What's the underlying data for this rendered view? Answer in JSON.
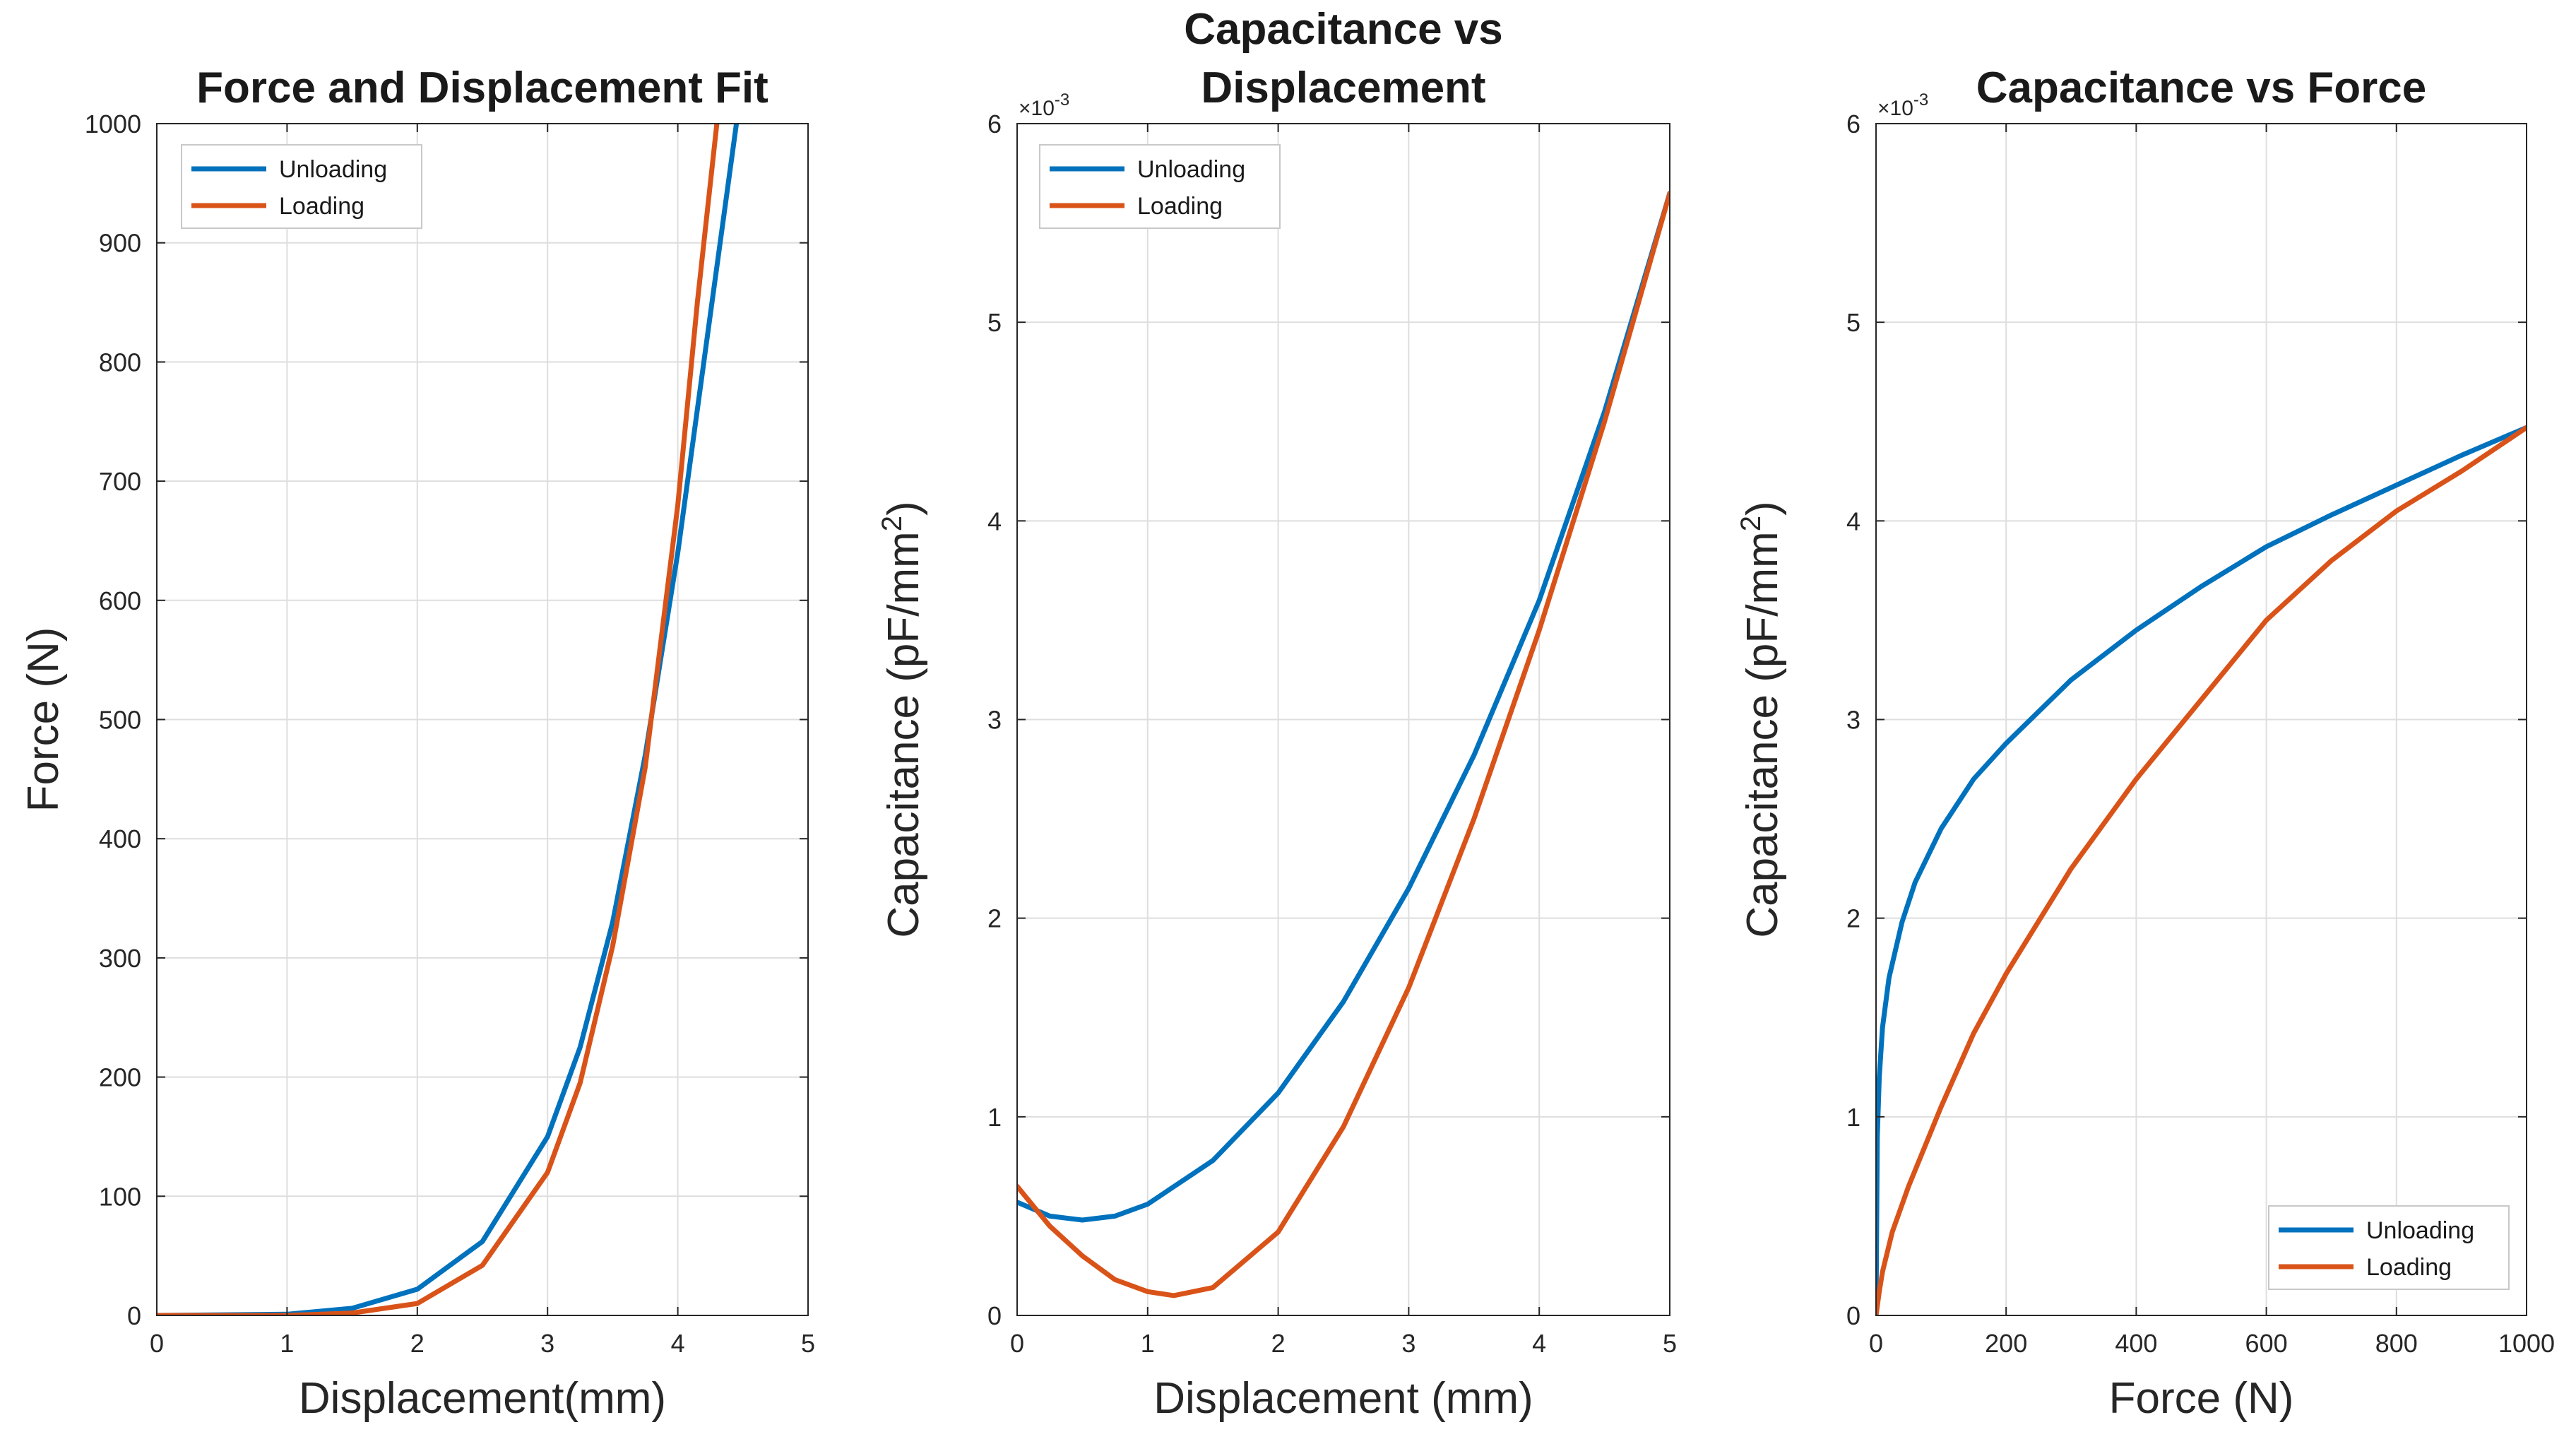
{
  "colors": {
    "unloading": "#0072BD",
    "loading": "#D95319"
  },
  "chart_data": [
    {
      "type": "line",
      "title": [
        "Force and Displacement Fit"
      ],
      "xlabel": "Displacement(mm)",
      "ylabel": "Force (N)",
      "xlim": [
        0,
        5
      ],
      "ylim": [
        0,
        1000
      ],
      "xticks": [
        0,
        1,
        2,
        3,
        4,
        5
      ],
      "yticks": [
        0,
        100,
        200,
        300,
        400,
        500,
        600,
        700,
        800,
        900,
        1000
      ],
      "xticklabels": [
        "0",
        "1",
        "2",
        "3",
        "4",
        "5"
      ],
      "yticklabels": [
        "0",
        "100",
        "200",
        "300",
        "400",
        "500",
        "600",
        "700",
        "800",
        "900",
        "1000"
      ],
      "legend": {
        "position": "top-left",
        "entries": [
          "Unloading",
          "Loading"
        ]
      },
      "series": [
        {
          "name": "Unloading",
          "x": [
            0,
            1,
            1.5,
            2,
            2.5,
            3,
            3.25,
            3.5,
            3.75,
            4,
            4.25,
            4.45
          ],
          "y": [
            0,
            1,
            6,
            22,
            62,
            150,
            225,
            330,
            470,
            640,
            840,
            1000
          ]
        },
        {
          "name": "Loading",
          "x": [
            0,
            1,
            1.5,
            2,
            2.5,
            3,
            3.25,
            3.5,
            3.75,
            4,
            4.15,
            4.3
          ],
          "y": [
            0,
            0,
            2,
            10,
            42,
            120,
            195,
            310,
            460,
            680,
            850,
            1000
          ]
        }
      ]
    },
    {
      "type": "line",
      "title": [
        "Capacitance vs",
        "Displacement"
      ],
      "xlabel": "Displacement (mm)",
      "ylabel": "Capacitance (pF/mm",
      "ylabel_sup": "2",
      "ylabel_end": ")",
      "exponent": {
        "base": "×10",
        "power": "-3"
      },
      "xlim": [
        0,
        5
      ],
      "ylim": [
        0,
        6
      ],
      "xticks": [
        0,
        1,
        2,
        3,
        4,
        5
      ],
      "yticks": [
        0,
        1,
        2,
        3,
        4,
        5,
        6
      ],
      "xticklabels": [
        "0",
        "1",
        "2",
        "3",
        "4",
        "5"
      ],
      "yticklabels": [
        "0",
        "1",
        "2",
        "3",
        "4",
        "5",
        "6"
      ],
      "legend": {
        "position": "top-left",
        "entries": [
          "Unloading",
          "Loading"
        ]
      },
      "series": [
        {
          "name": "Unloading",
          "x": [
            0,
            0.25,
            0.5,
            0.75,
            1,
            1.5,
            2,
            2.5,
            3,
            3.5,
            4,
            4.5,
            5
          ],
          "y": [
            0.57,
            0.5,
            0.48,
            0.5,
            0.56,
            0.78,
            1.12,
            1.58,
            2.15,
            2.82,
            3.6,
            4.55,
            5.65
          ]
        },
        {
          "name": "Loading",
          "x": [
            0,
            0.25,
            0.5,
            0.75,
            1,
            1.2,
            1.5,
            2,
            2.5,
            3,
            3.5,
            4,
            4.5,
            5
          ],
          "y": [
            0.65,
            0.45,
            0.3,
            0.18,
            0.12,
            0.1,
            0.14,
            0.42,
            0.95,
            1.65,
            2.5,
            3.45,
            4.5,
            5.65
          ]
        }
      ]
    },
    {
      "type": "line",
      "title": [
        "Capacitance vs Force"
      ],
      "xlabel": "Force (N)",
      "ylabel": "Capacitance (pF/mm",
      "ylabel_sup": "2",
      "ylabel_end": ")",
      "exponent": {
        "base": "×10",
        "power": "-3"
      },
      "xlim": [
        0,
        1000
      ],
      "ylim": [
        0,
        6
      ],
      "xticks": [
        0,
        200,
        400,
        600,
        800,
        1000
      ],
      "yticks": [
        0,
        1,
        2,
        3,
        4,
        5,
        6
      ],
      "xticklabels": [
        "0",
        "200",
        "400",
        "600",
        "800",
        "1000"
      ],
      "yticklabels": [
        "0",
        "1",
        "2",
        "3",
        "4",
        "5",
        "6"
      ],
      "legend": {
        "position": "bottom-right",
        "entries": [
          "Unloading",
          "Loading"
        ]
      },
      "series": [
        {
          "name": "Unloading",
          "x": [
            0,
            2,
            5,
            10,
            20,
            40,
            60,
            100,
            150,
            200,
            300,
            400,
            500,
            600,
            700,
            800,
            900,
            1000
          ],
          "y": [
            0,
            0.9,
            1.2,
            1.45,
            1.7,
            1.98,
            2.18,
            2.45,
            2.7,
            2.88,
            3.2,
            3.45,
            3.67,
            3.87,
            4.03,
            4.18,
            4.33,
            4.47
          ]
        },
        {
          "name": "Loading",
          "x": [
            0,
            5,
            10,
            25,
            50,
            100,
            150,
            200,
            300,
            400,
            500,
            600,
            700,
            800,
            900,
            1000
          ],
          "y": [
            0,
            0.12,
            0.22,
            0.42,
            0.65,
            1.05,
            1.42,
            1.72,
            2.25,
            2.7,
            3.1,
            3.5,
            3.8,
            4.05,
            4.25,
            4.47
          ]
        }
      ]
    }
  ]
}
